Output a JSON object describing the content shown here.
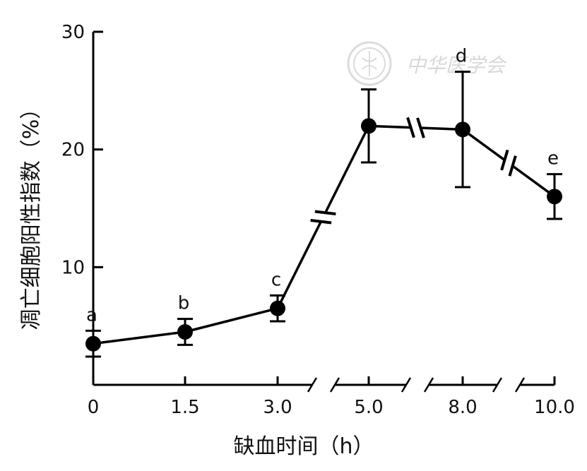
{
  "watermark": {
    "text": "中华医学会",
    "logo_icon": "medical-association-seal-icon"
  },
  "chart_data": {
    "type": "line",
    "xlabel": "缺血时间（h）",
    "ylabel": "凋亡细胞阳性指数（%）",
    "x_tick_labels": [
      "0",
      "1.5",
      "3.0",
      "5.0",
      "8.0",
      "10.0"
    ],
    "y_ticks": [
      10,
      20,
      30
    ],
    "ylim": [
      0,
      30
    ],
    "axis_breaks": true,
    "grid": false,
    "series": [
      {
        "points": [
          {
            "x": "0",
            "y": 3.5,
            "err": 1.1,
            "label": "a"
          },
          {
            "x": "1.5",
            "y": 4.5,
            "err": 1.1,
            "label": "b"
          },
          {
            "x": "3.0",
            "y": 6.5,
            "err": 1.1,
            "label": "c"
          },
          {
            "x": "5.0",
            "y": 22.0,
            "err": 3.1,
            "label": ""
          },
          {
            "x": "8.0",
            "y": 21.7,
            "err": 4.9,
            "label": "d"
          },
          {
            "x": "10.0",
            "y": 16.0,
            "err": 1.9,
            "label": "e"
          }
        ]
      }
    ],
    "colors": {
      "line": "#000000",
      "watermark": "#d8d8d8"
    }
  }
}
